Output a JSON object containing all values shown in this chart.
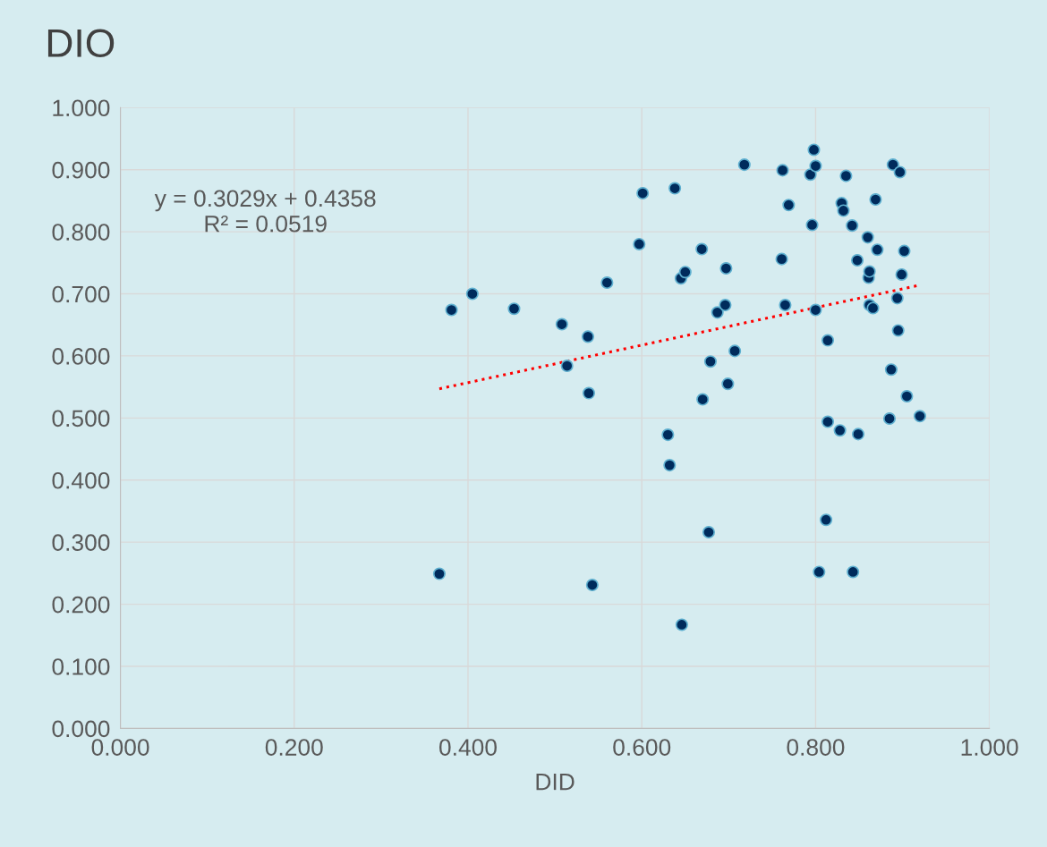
{
  "chart_data": {
    "type": "scatter",
    "title": "DIO",
    "xlabel": "DID",
    "xlim": [
      0,
      1
    ],
    "ylim": [
      0,
      1
    ],
    "xticks": [
      {
        "value": 0,
        "label": "0.000"
      },
      {
        "value": 0.2,
        "label": "0.200"
      },
      {
        "value": 0.4,
        "label": "0.400"
      },
      {
        "value": 0.6,
        "label": "0.600"
      },
      {
        "value": 0.8,
        "label": "0.800"
      },
      {
        "value": 1,
        "label": "1.000"
      }
    ],
    "yticks": [
      {
        "value": 0,
        "label": "0.000"
      },
      {
        "value": 0.1,
        "label": "0.100"
      },
      {
        "value": 0.2,
        "label": "0.200"
      },
      {
        "value": 0.3,
        "label": "0.300"
      },
      {
        "value": 0.4,
        "label": "0.400"
      },
      {
        "value": 0.5,
        "label": "0.500"
      },
      {
        "value": 0.6,
        "label": "0.600"
      },
      {
        "value": 0.7,
        "label": "0.700"
      },
      {
        "value": 0.8,
        "label": "0.800"
      },
      {
        "value": 0.9,
        "label": "0.900"
      },
      {
        "value": 1,
        "label": "1.000"
      }
    ],
    "grid": true,
    "marker": "circle",
    "series": [
      {
        "color": "#002b5c",
        "x": [
          0.367,
          0.381,
          0.405,
          0.453,
          0.508,
          0.514,
          0.538,
          0.539,
          0.543,
          0.56,
          0.597,
          0.601,
          0.63,
          0.632,
          0.638,
          0.645,
          0.646,
          0.65,
          0.669,
          0.67,
          0.677,
          0.679,
          0.687,
          0.696,
          0.697,
          0.699,
          0.707,
          0.718,
          0.761,
          0.762,
          0.765,
          0.769,
          0.794,
          0.796,
          0.798,
          0.8,
          0.8,
          0.804,
          0.812,
          0.814,
          0.814,
          0.828,
          0.83,
          0.832,
          0.835,
          0.842,
          0.843,
          0.848,
          0.849,
          0.86,
          0.861,
          0.862,
          0.862,
          0.866,
          0.869,
          0.871,
          0.885,
          0.887,
          0.889,
          0.894,
          0.895,
          0.897,
          0.899,
          0.902,
          0.905,
          0.92
        ],
        "values": [
          0.249,
          0.674,
          0.7,
          0.676,
          0.651,
          0.584,
          0.631,
          0.54,
          0.231,
          0.718,
          0.78,
          0.862,
          0.473,
          0.424,
          0.87,
          0.725,
          0.167,
          0.735,
          0.772,
          0.53,
          0.316,
          0.591,
          0.67,
          0.682,
          0.741,
          0.555,
          0.608,
          0.908,
          0.756,
          0.899,
          0.682,
          0.843,
          0.892,
          0.811,
          0.932,
          0.906,
          0.674,
          0.252,
          0.336,
          0.625,
          0.494,
          0.48,
          0.846,
          0.834,
          0.89,
          0.81,
          0.252,
          0.754,
          0.474,
          0.791,
          0.726,
          0.736,
          0.682,
          0.677,
          0.852,
          0.771,
          0.499,
          0.578,
          0.908,
          0.693,
          0.641,
          0.896,
          0.731,
          0.769,
          0.535,
          0.503
        ]
      },
      {
        "type": "line",
        "color": "#ff0000",
        "line_style": "dotted",
        "marker": "none",
        "x": [
          0.367,
          0.92
        ],
        "values": [
          0.547,
          0.714
        ]
      }
    ],
    "annotations": [
      "y = 0.3029x + 0.4358\nR² = 0.0519"
    ]
  }
}
